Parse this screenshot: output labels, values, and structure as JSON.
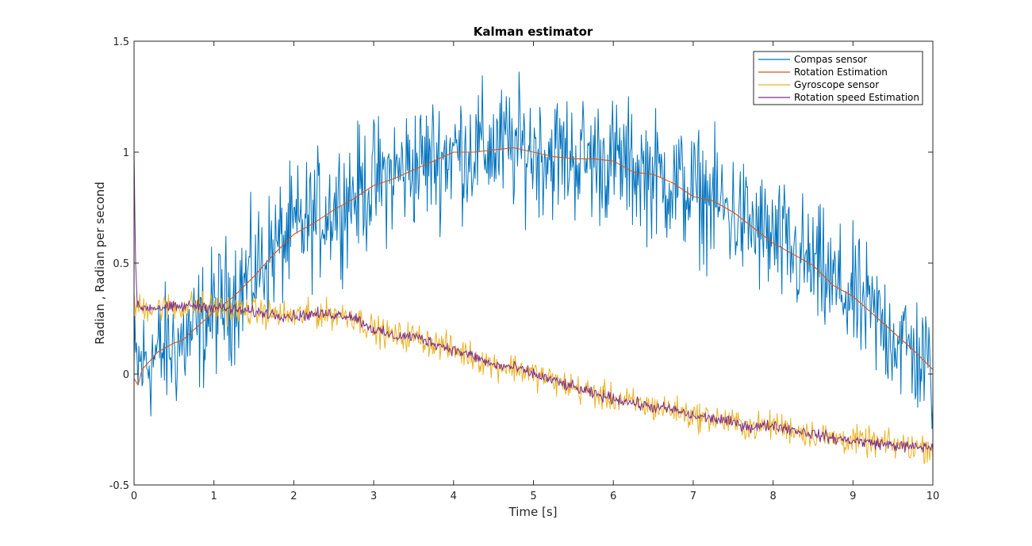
{
  "chart_data": {
    "type": "line",
    "title": "Kalman estimator",
    "xlabel": "Time [s]",
    "ylabel": "Radian , Radian per second",
    "xlim": [
      0,
      10
    ],
    "ylim": [
      -0.5,
      1.5
    ],
    "xticks": [
      0,
      1,
      2,
      3,
      4,
      5,
      6,
      7,
      8,
      9,
      10
    ],
    "xtick_labels": [
      "0",
      "1",
      "2",
      "3",
      "4",
      "5",
      "6",
      "7",
      "8",
      "9",
      "10"
    ],
    "yticks": [
      -0.5,
      0,
      0.5,
      1,
      1.5
    ],
    "ytick_labels": [
      "-0.5",
      "0",
      "0.5",
      "1",
      "1.5"
    ],
    "grid": false,
    "legend_position": "top-right",
    "sample_interval": 0.1,
    "series": [
      {
        "name": "Compas sensor",
        "color": "#0072BD",
        "noisy": true,
        "noise_amplitude": 0.2,
        "x": [
          0,
          0.25,
          0.5,
          0.75,
          1,
          1.25,
          1.5,
          1.75,
          2,
          2.25,
          2.5,
          2.75,
          3,
          3.25,
          3.5,
          3.75,
          4,
          4.25,
          4.5,
          4.75,
          5,
          5.25,
          5.5,
          5.75,
          6,
          6.25,
          6.5,
          6.75,
          7,
          7.25,
          7.5,
          7.75,
          8,
          8.25,
          8.5,
          8.75,
          9,
          9.25,
          9.5,
          9.75,
          10
        ],
        "y": [
          0.02,
          0.08,
          0.12,
          0.18,
          0.28,
          0.36,
          0.46,
          0.56,
          0.64,
          0.7,
          0.76,
          0.81,
          0.86,
          0.9,
          0.94,
          0.97,
          1.0,
          1.01,
          1.02,
          1.02,
          1.01,
          0.99,
          0.98,
          0.97,
          0.96,
          0.93,
          0.9,
          0.86,
          0.82,
          0.78,
          0.72,
          0.66,
          0.6,
          0.54,
          0.48,
          0.4,
          0.34,
          0.26,
          0.18,
          0.1,
          0.0
        ]
      },
      {
        "name": "Rotation Estimation",
        "color": "#D95319",
        "noisy": false,
        "x": [
          0,
          0.05,
          0.1,
          0.2,
          0.3,
          0.5,
          0.6,
          0.75,
          1,
          1.25,
          1.5,
          1.75,
          2,
          2.25,
          2.5,
          2.75,
          3,
          3.25,
          3.5,
          3.75,
          4,
          4.25,
          4.5,
          4.75,
          5,
          5.25,
          5.5,
          5.75,
          6,
          6.25,
          6.5,
          6.75,
          7,
          7.25,
          7.5,
          7.75,
          8,
          8.25,
          8.5,
          8.75,
          9,
          9.25,
          9.5,
          9.75,
          10
        ],
        "y": [
          -0.02,
          -0.05,
          0.02,
          0.06,
          0.1,
          0.14,
          0.15,
          0.2,
          0.28,
          0.35,
          0.44,
          0.54,
          0.63,
          0.68,
          0.74,
          0.79,
          0.85,
          0.88,
          0.92,
          0.96,
          1.0,
          1.0,
          1.01,
          1.02,
          1.0,
          0.98,
          0.97,
          0.97,
          0.96,
          0.91,
          0.9,
          0.86,
          0.8,
          0.78,
          0.73,
          0.66,
          0.59,
          0.54,
          0.49,
          0.4,
          0.35,
          0.27,
          0.19,
          0.11,
          0.02
        ]
      },
      {
        "name": "Gyroscope sensor",
        "color": "#EDB120",
        "noisy": true,
        "noise_amplitude": 0.045,
        "x": [
          0,
          0.25,
          0.5,
          0.75,
          1,
          1.25,
          1.5,
          1.75,
          2,
          2.25,
          2.5,
          2.75,
          3,
          3.25,
          3.5,
          3.75,
          4,
          4.25,
          4.5,
          4.75,
          5,
          5.25,
          5.5,
          5.75,
          6,
          6.25,
          6.5,
          6.75,
          7,
          7.25,
          7.5,
          7.75,
          8,
          8.25,
          8.5,
          8.75,
          9,
          9.25,
          9.5,
          9.75,
          10
        ],
        "y": [
          0.3,
          0.3,
          0.3,
          0.31,
          0.3,
          0.29,
          0.28,
          0.27,
          0.26,
          0.27,
          0.27,
          0.26,
          0.2,
          0.17,
          0.17,
          0.14,
          0.11,
          0.08,
          0.04,
          0.03,
          0.0,
          -0.03,
          -0.06,
          -0.09,
          -0.11,
          -0.13,
          -0.15,
          -0.16,
          -0.19,
          -0.2,
          -0.22,
          -0.24,
          -0.23,
          -0.25,
          -0.27,
          -0.29,
          -0.3,
          -0.31,
          -0.32,
          -0.33,
          -0.33
        ]
      },
      {
        "name": "Rotation speed Estimation",
        "color": "#7E2F8E",
        "noisy": true,
        "noise_amplitude": 0.018,
        "x": [
          0,
          0.02,
          0.04,
          0.08,
          0.25,
          0.5,
          0.75,
          1,
          1.25,
          1.5,
          1.75,
          2,
          2.25,
          2.5,
          2.75,
          3,
          3.25,
          3.5,
          3.75,
          4,
          4.25,
          4.5,
          4.75,
          5,
          5.25,
          5.5,
          5.75,
          6,
          6.25,
          6.5,
          6.75,
          7,
          7.25,
          7.5,
          7.75,
          8,
          8.25,
          8.5,
          8.75,
          9,
          9.25,
          9.5,
          9.75,
          10
        ],
        "y": [
          1.0,
          0.5,
          0.3,
          0.3,
          0.3,
          0.3,
          0.31,
          0.3,
          0.29,
          0.28,
          0.27,
          0.26,
          0.27,
          0.27,
          0.26,
          0.2,
          0.17,
          0.17,
          0.14,
          0.11,
          0.08,
          0.04,
          0.03,
          0.0,
          -0.03,
          -0.06,
          -0.09,
          -0.11,
          -0.13,
          -0.15,
          -0.16,
          -0.19,
          -0.2,
          -0.22,
          -0.24,
          -0.23,
          -0.25,
          -0.27,
          -0.29,
          -0.3,
          -0.31,
          -0.32,
          -0.33,
          -0.33
        ]
      }
    ]
  }
}
